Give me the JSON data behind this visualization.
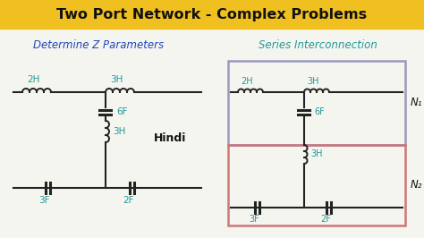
{
  "title": "Two Port Network - Complex Problems",
  "title_bg": "#F0C020",
  "title_color": "#111111",
  "bg_color": "#F5F5F0",
  "subtitle_left": "Determine Z Parameters",
  "subtitle_left_color": "#2244BB",
  "subtitle_right": "Series Interconnection",
  "subtitle_right_color": "#229999",
  "hindi_label": "Hindi",
  "hindi_color": "#111111",
  "n1_label": "N₁",
  "n2_label": "N₂",
  "n1_color": "#111111",
  "n2_color": "#111111",
  "box_n1_color": "#9999BB",
  "box_n2_color": "#CC7777",
  "label_color": "#229999",
  "line_color": "#222222",
  "component_color": "#222222"
}
